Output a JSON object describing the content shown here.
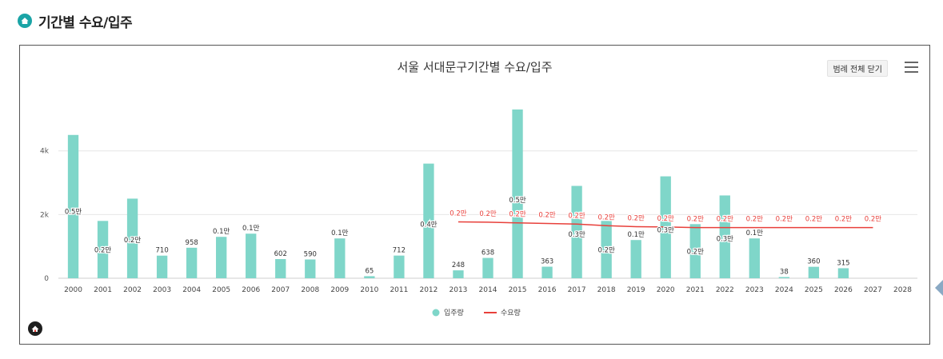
{
  "page": {
    "section_title": "기간별 수요/입주"
  },
  "toolbar": {
    "legend_toggle_label": "범례 전체 닫기",
    "menu_icon": "hamburger-menu-icon"
  },
  "colors": {
    "supply": "#7fd6c9",
    "demand": "#e8403b",
    "grid": "#e6e6e6",
    "accent": "#1aa4a6"
  },
  "chart_data": {
    "type": "bar",
    "title": "서울 서대문구기간별 수요/입주",
    "categories": [
      "2000",
      "2001",
      "2002",
      "2003",
      "2004",
      "2005",
      "2006",
      "2007",
      "2008",
      "2009",
      "2010",
      "2011",
      "2012",
      "2013",
      "2014",
      "2015",
      "2016",
      "2017",
      "2018",
      "2019",
      "2020",
      "2021",
      "2022",
      "2023",
      "2024",
      "2025",
      "2026",
      "2027",
      "2028"
    ],
    "yticks": [
      {
        "value": 0,
        "label": "0"
      },
      {
        "value": 2000,
        "label": "2k"
      },
      {
        "value": 4000,
        "label": "4k"
      }
    ],
    "ylim": [
      0,
      5800
    ],
    "series": [
      {
        "name": "입주량",
        "type": "bar",
        "values": [
          4500,
          1800,
          2500,
          710,
          958,
          1300,
          1400,
          602,
          590,
          1250,
          65,
          712,
          3600,
          248,
          638,
          5300,
          363,
          2900,
          1800,
          1200,
          3200,
          1700,
          2600,
          1250,
          38,
          360,
          315,
          null,
          null
        ],
        "labels": [
          "0.5만",
          "0.2만",
          "0.2만",
          "710",
          "958",
          "0.1만",
          "0.1만",
          "602",
          "590",
          "0.1만",
          "65",
          "712",
          "0.4만",
          "248",
          "638",
          "0.5만",
          "363",
          "0.3만",
          "0.2만",
          "0.1만",
          "0.3만",
          "0.2만",
          "0.3만",
          "0.1만",
          "38",
          "360",
          "315",
          "",
          ""
        ]
      },
      {
        "name": "수요량",
        "type": "line",
        "values": [
          null,
          null,
          null,
          null,
          null,
          null,
          null,
          null,
          null,
          null,
          null,
          null,
          null,
          1770,
          1760,
          1740,
          1720,
          1700,
          1650,
          1620,
          1610,
          1590,
          1590,
          1590,
          1590,
          1590,
          1590,
          1590,
          null
        ],
        "labels": [
          "",
          "",
          "",
          "",
          "",
          "",
          "",
          "",
          "",
          "",
          "",
          "",
          "",
          "0.2만",
          "0.2만",
          "0.2만",
          "0.2만",
          "0.2만",
          "0.2만",
          "0.2만",
          "0.2만",
          "0.2만",
          "0.2만",
          "0.2만",
          "0.2만",
          "0.2만",
          "0.2만",
          "0.2만",
          ""
        ]
      }
    ],
    "legend": [
      "입주량",
      "수요량"
    ],
    "legend_position": "bottom",
    "grid": true
  }
}
